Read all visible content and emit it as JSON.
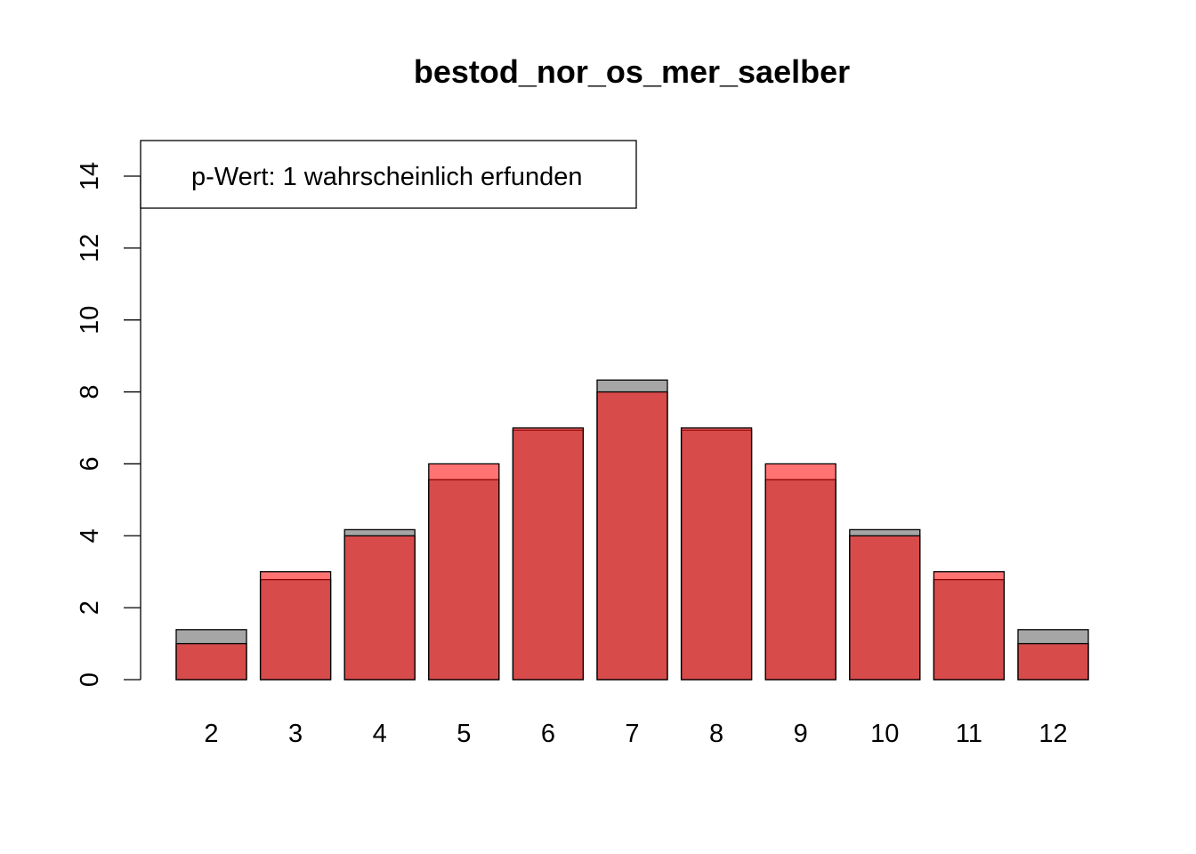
{
  "chart_data": {
    "type": "bar",
    "title": "bestod_nor_os_mer_saelber",
    "xlabel": "",
    "ylabel": "",
    "categories": [
      "2",
      "3",
      "4",
      "5",
      "6",
      "7",
      "8",
      "9",
      "10",
      "11",
      "12"
    ],
    "series": [
      {
        "values": [
          1.39,
          2.78,
          4.17,
          5.56,
          6.94,
          8.33,
          6.94,
          5.56,
          4.17,
          2.78,
          1.39
        ],
        "color": "#a6a6a6"
      },
      {
        "values": [
          1,
          3,
          4,
          6,
          7,
          8,
          7,
          6,
          4,
          3,
          1
        ],
        "color": "#ff0000",
        "opacity": 0.55
      }
    ],
    "ylim": [
      0,
      15
    ],
    "yticks": [
      0,
      2,
      4,
      6,
      8,
      10,
      12,
      14
    ],
    "grid": false,
    "legend": {
      "position": "top-left",
      "text": "p-Wert: 1 wahrscheinlich erfunden"
    }
  }
}
